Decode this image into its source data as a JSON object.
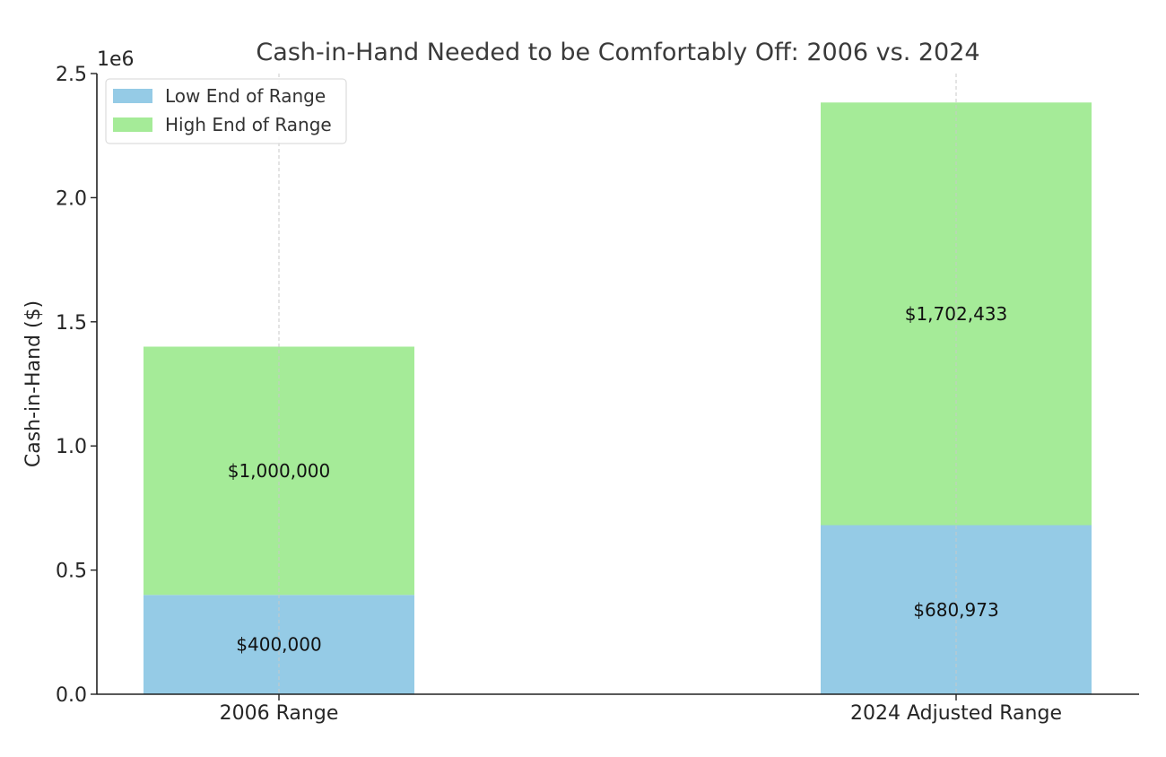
{
  "chart_data": {
    "type": "bar",
    "stacked": true,
    "title": "Cash-in-Hand Needed to be Comfortably Off: 2006 vs. 2024",
    "xlabel": "",
    "ylabel": "Cash-in-Hand ($)",
    "y_offset_label": "1e6",
    "ylim": [
      0,
      2500000
    ],
    "yticks": [
      0,
      500000,
      1000000,
      1500000,
      2000000,
      2500000
    ],
    "ytick_labels": [
      "0.0",
      "0.5",
      "1.0",
      "1.5",
      "2.0",
      "2.5"
    ],
    "categories": [
      "2006 Range",
      "2024 Adjusted Range"
    ],
    "series": [
      {
        "name": "Low End of Range",
        "values": [
          400000,
          680973
        ],
        "labels": [
          "$400,000",
          "$680,973"
        ],
        "color": "#95cbe6"
      },
      {
        "name": "High End of Range",
        "values": [
          1000000,
          1702433
        ],
        "labels": [
          "$1,000,000",
          "$1,702,433"
        ],
        "color": "#a5eb98"
      }
    ],
    "grid": "x-dashed",
    "legend_position": "top-left"
  }
}
